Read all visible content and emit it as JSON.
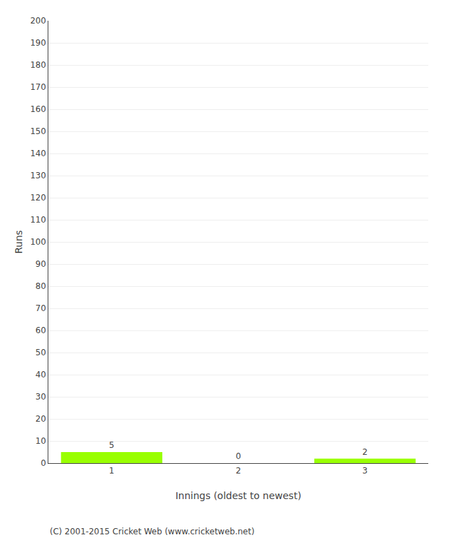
{
  "chart_data": {
    "type": "bar",
    "categories": [
      1,
      2,
      3
    ],
    "values": [
      5,
      0,
      2
    ],
    "color": "#99ff00",
    "xlabel": "Innings (oldest to newest)",
    "ylabel": "Runs",
    "ylim": [
      0,
      200
    ],
    "yticks": [
      0,
      10,
      20,
      30,
      40,
      50,
      60,
      70,
      80,
      90,
      100,
      110,
      120,
      130,
      140,
      150,
      160,
      170,
      180,
      190,
      200
    ],
    "grid": true,
    "data_labels": true,
    "annotations": [
      "(C) 2001-2015 Cricket Web (www.cricketweb.net)"
    ]
  }
}
